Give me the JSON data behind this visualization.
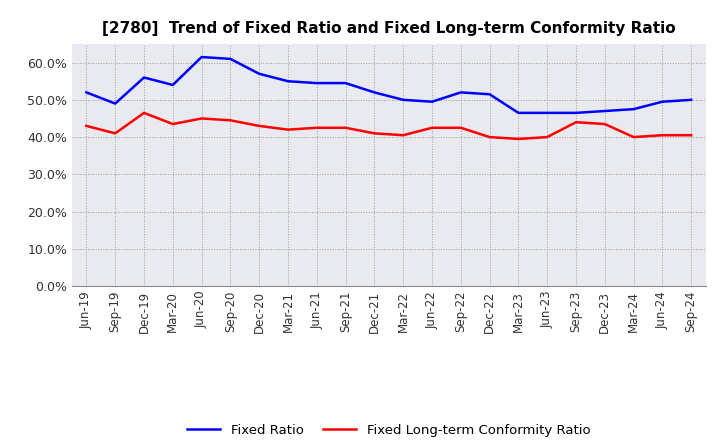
{
  "title": "[2780]  Trend of Fixed Ratio and Fixed Long-term Conformity Ratio",
  "x_labels": [
    "Jun-19",
    "Sep-19",
    "Dec-19",
    "Mar-20",
    "Jun-20",
    "Sep-20",
    "Dec-20",
    "Mar-21",
    "Jun-21",
    "Sep-21",
    "Dec-21",
    "Mar-22",
    "Jun-22",
    "Sep-22",
    "Dec-22",
    "Mar-23",
    "Jun-23",
    "Sep-23",
    "Dec-23",
    "Mar-24",
    "Jun-24",
    "Sep-24"
  ],
  "fixed_ratio": [
    52.0,
    49.0,
    56.0,
    54.0,
    61.5,
    61.0,
    57.0,
    55.0,
    54.5,
    54.5,
    52.0,
    50.0,
    49.5,
    52.0,
    51.5,
    46.5,
    46.5,
    46.5,
    47.0,
    47.5,
    49.5,
    50.0
  ],
  "fixed_lt_ratio": [
    43.0,
    41.0,
    46.5,
    43.5,
    45.0,
    44.5,
    43.0,
    42.0,
    42.5,
    42.5,
    41.0,
    40.5,
    42.5,
    42.5,
    40.0,
    39.5,
    40.0,
    44.0,
    43.5,
    40.0,
    40.5,
    40.5
  ],
  "fixed_ratio_color": "#0000FF",
  "fixed_lt_ratio_color": "#FF0000",
  "ylim": [
    0,
    65
  ],
  "yticks": [
    0,
    10,
    20,
    30,
    40,
    50,
    60
  ],
  "background_color": "#FFFFFF",
  "plot_bg_color": "#E8EAF0",
  "grid_color": "#999999",
  "legend_fixed": "Fixed Ratio",
  "legend_lt": "Fixed Long-term Conformity Ratio",
  "title_fontsize": 11,
  "tick_fontsize": 8.5,
  "ytick_fontsize": 9
}
